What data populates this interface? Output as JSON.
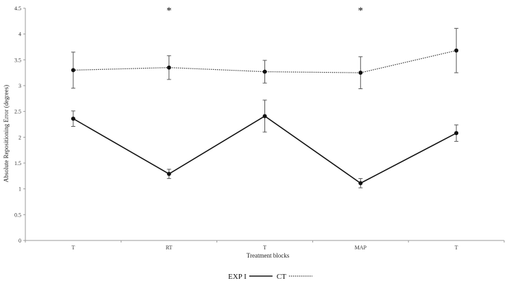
{
  "chart_data": {
    "type": "line",
    "categories": [
      "T",
      "RT",
      "T",
      "MAP",
      "T"
    ],
    "xlabel": "Treatment blocks",
    "ylabel": "Absolute  Repositioning  Error  (degrees)",
    "ylim": [
      0,
      4.5
    ],
    "yticks": [
      "0",
      "0.5",
      "1",
      "1.5",
      "2",
      "2.5",
      "3",
      "3.5",
      "4",
      "4.5"
    ],
    "ytick_values": [
      0,
      0.5,
      1,
      1.5,
      2,
      2.5,
      3,
      3.5,
      4,
      4.5
    ],
    "grid": false,
    "legend_position": "bottom-center",
    "significance_markers": [
      {
        "category_index": 1,
        "text": "*"
      },
      {
        "category_index": 3,
        "text": "*"
      }
    ],
    "series": [
      {
        "name": "EXP I",
        "style": "solid",
        "color": "#111111",
        "values": [
          2.36,
          1.29,
          2.41,
          1.11,
          2.08
        ],
        "error": [
          0.15,
          0.09,
          0.31,
          0.09,
          0.16
        ]
      },
      {
        "name": "CT",
        "style": "dotted",
        "color": "#333333",
        "values": [
          3.3,
          3.35,
          3.27,
          3.25,
          3.68
        ],
        "error": [
          0.35,
          0.23,
          0.22,
          0.31,
          0.43
        ]
      }
    ]
  }
}
